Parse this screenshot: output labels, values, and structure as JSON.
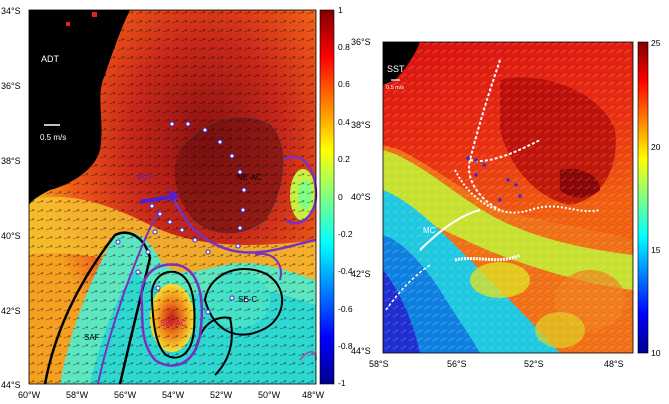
{
  "adt_panel": {
    "label": "ADT",
    "scale_label": "0.5 m/s",
    "lat_ticks": [
      "34°S",
      "36°S",
      "38°S",
      "40°S",
      "42°S",
      "44°S"
    ],
    "lon_ticks": [
      "60°W",
      "58°W",
      "56°W",
      "54°W",
      "52°W",
      "50°W",
      "48°W"
    ],
    "colorbar_ticks": [
      "1",
      "0.8",
      "0.6",
      "0.4",
      "0.2",
      "0",
      "-0.2",
      "-0.4",
      "-0.6",
      "-0.8",
      "-1"
    ],
    "colorbar_range": [
      -1,
      1
    ],
    "feature_labels": {
      "bcf": "BCF",
      "ne_ac": "NE-AC",
      "sw_ac": "SW-AC",
      "se_c": "SE-C",
      "saf": "SAF"
    }
  },
  "sst_panel": {
    "label": "SST",
    "scale_label": "0.5 m/s",
    "lat_ticks": [
      "36°S",
      "38°S",
      "40°S",
      "42°S",
      "44°S"
    ],
    "lon_ticks": [
      "58°S",
      "56°S",
      "52°S",
      "48°S"
    ],
    "colorbar_ticks": [
      "25",
      "20",
      "15",
      "10"
    ],
    "colorbar_range": [
      10,
      25
    ],
    "feature_labels": {
      "mc": "MC"
    }
  }
}
